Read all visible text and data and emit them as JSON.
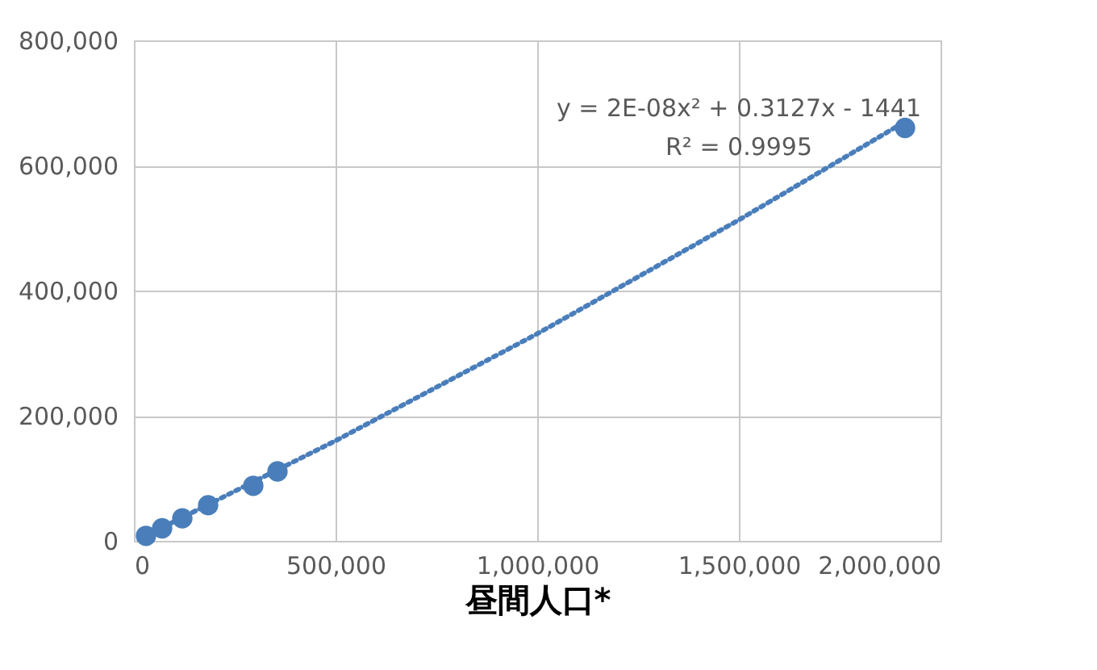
{
  "chart_data": {
    "type": "scatter",
    "xlabel": "昼間人口*",
    "xlim": [
      0,
      2000000
    ],
    "xticks": [
      0,
      {
        "value": 500000,
        "label": "500,000"
      },
      {
        "value": 1000000,
        "label": "1,000,000"
      },
      {
        "value": 1500000,
        "label": "1,500,000"
      },
      {
        "value": 2000000,
        "label": "2,000,000"
      }
    ],
    "ylim": [
      0,
      800000
    ],
    "yticks": [
      0,
      {
        "value": 200000,
        "label": "200,000"
      },
      {
        "value": 400000,
        "label": "400,000"
      },
      {
        "value": 600000,
        "label": "600,000"
      },
      {
        "value": 800000,
        "label": "800,000"
      }
    ],
    "grid": true,
    "series": [
      {
        "color": "#4a7ebb",
        "marker": "circle",
        "x": [
          30000,
          70000,
          120000,
          184000,
          296000,
          356000,
          1912000
        ],
        "values": [
          8000,
          20000,
          36000,
          57000,
          88000,
          111000,
          660000
        ]
      },
      {
        "type": "line",
        "color": "#4a7ebb",
        "line_style": "dotted",
        "marker": "none",
        "x": [
          20000,
          500000,
          1000000,
          1500000,
          1912000
        ],
        "values": [
          5000,
          160000,
          331000,
          513000,
          670000
        ]
      }
    ],
    "annotations": [
      "y = 2E-08x² + 0.3127x - 1441",
      "R² = 0.9995"
    ]
  }
}
